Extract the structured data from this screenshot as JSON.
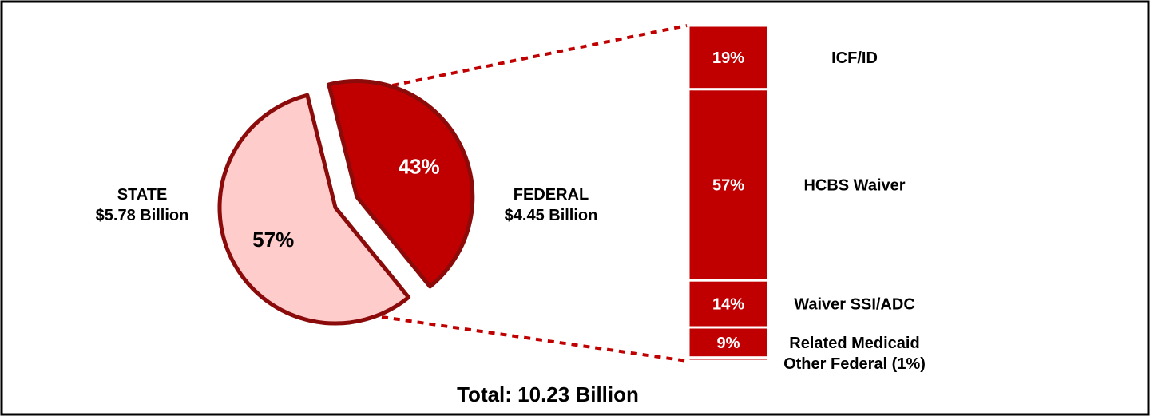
{
  "chart_data": [
    {
      "type": "pie",
      "slices": [
        {
          "name": "STATE",
          "amount": "$5.78 Billion",
          "value": 57,
          "label": "57%",
          "color": "#ffcccc"
        },
        {
          "name": "FEDERAL",
          "amount": "$4.45 Billion",
          "value": 43,
          "label": "43%",
          "color": "#c00000"
        }
      ],
      "exploded": "FEDERAL",
      "border_color": "#8b0a0a"
    },
    {
      "type": "bar",
      "stacked": true,
      "breakdown_of": "FEDERAL",
      "categories": [
        "ICF/ID",
        "HCBS Waiver",
        "Waiver SSI/ADC",
        "Related Medicaid",
        "Other Federal (1%)"
      ],
      "values": [
        19,
        57,
        14,
        9,
        1
      ],
      "labels": [
        "19%",
        "57%",
        "14%",
        "9%",
        ""
      ],
      "color": "#c00000"
    }
  ],
  "total": "Total: 10.23 Billion"
}
